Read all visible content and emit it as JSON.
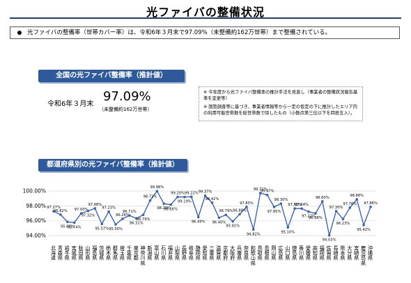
{
  "title": "光ファイバの整備状況",
  "bullet": "光ファイバの整備率（世帯カバー率）は、令和6年３月末で97.09%（未整備約162万世帯）まで整備されている。",
  "national": {
    "heading": "全国の光ファイバ整備率（推計値）",
    "date": "令和6年３月末",
    "rate": "97.09%",
    "unserved": "（未整備約162万世帯）"
  },
  "notes": [
    "※ 今年度から光ファイバ整備率の推計手法を見直し（事業者の整備状況報告基準を変更等）",
    "※ 国勢調査等に基づき、事業者情報等から一定の仮定の下に推計したエリア内の利用可能世帯数を総世帯数で除したもの（小数点第三位以下を四捨五入）。"
  ],
  "chart_data": {
    "type": "line",
    "title": "都道府県別の光ファイバ整備率（推計値）",
    "categories": [
      "北海道",
      "青森県",
      "岩手県",
      "宮城県",
      "秋田県",
      "山形県",
      "福島県",
      "茨城県",
      "栃木県",
      "群馬県",
      "埼玉県",
      "千葉県",
      "東京都",
      "神奈川県",
      "新潟県",
      "富山県",
      "石川県",
      "福井県",
      "山梨県",
      "長野県",
      "岐阜県",
      "静岡県",
      "愛知県",
      "三重県",
      "滋賀県",
      "京都府",
      "大阪府",
      "兵庫県",
      "奈良県",
      "和歌山県",
      "鳥取県",
      "島根県",
      "岡山県",
      "広島県",
      "山口県",
      "徳島県",
      "香川県",
      "愛媛県",
      "高知県",
      "福岡県",
      "佐賀県",
      "長崎県",
      "熊本県",
      "大分県",
      "宮崎県",
      "鹿児島県",
      "沖縄県"
    ],
    "values": [
      97.27,
      96.82,
      95.85,
      95.74,
      97.0,
      97.32,
      97.66,
      95.57,
      97.23,
      95.5,
      96.26,
      96.71,
      96.31,
      96.79,
      98.72,
      99.98,
      98.29,
      98.16,
      99.2,
      99.19,
      99.22,
      96.49,
      99.37,
      98.42,
      96.4,
      96.79,
      95.91,
      96.88,
      97.85,
      94.82,
      99.71,
      99.47,
      97.85,
      98.3,
      95.1,
      97.65,
      97.64,
      97.22,
      96.98,
      98.6,
      94.03,
      97.3,
      96.23,
      97.76,
      98.88,
      95.42,
      97.86
    ],
    "value_labels": [
      "97.27%",
      "96.82%",
      "95.85%",
      "95.74%",
      "97.00%",
      "97.32%",
      "97.66%",
      "95.57%",
      "97.23%",
      "95.50%",
      "96.26%",
      "96.71%",
      "96.31%",
      "96.79%",
      "98.72%",
      "99.98%",
      "98.29%",
      "98.16%",
      "99.20%",
      "99.19%",
      "99.22%",
      "96.49%",
      "99.37%",
      "98.42%",
      "96.40%",
      "96.79%",
      "95.91%",
      "96.88%",
      "97.85%",
      "94.82%",
      "99.71%",
      "99.47%",
      "97.85%",
      "98.30%",
      "95.10%",
      "97.65%",
      "97.64%",
      "97.22%",
      "96.98%",
      "98.60%",
      "94.03%",
      "97.30%",
      "96.23%",
      "97.76%",
      "98.88%",
      "95.42%",
      "97.86%"
    ],
    "color": "#3a64b4",
    "ylim": [
      94,
      100
    ],
    "yticks": [
      {
        "value": 94,
        "label": "94.00%"
      },
      {
        "value": 96,
        "label": "96.00%"
      },
      {
        "value": 98,
        "label": "98.00%"
      },
      {
        "value": 100,
        "label": "100.00%"
      }
    ],
    "grid": true
  }
}
